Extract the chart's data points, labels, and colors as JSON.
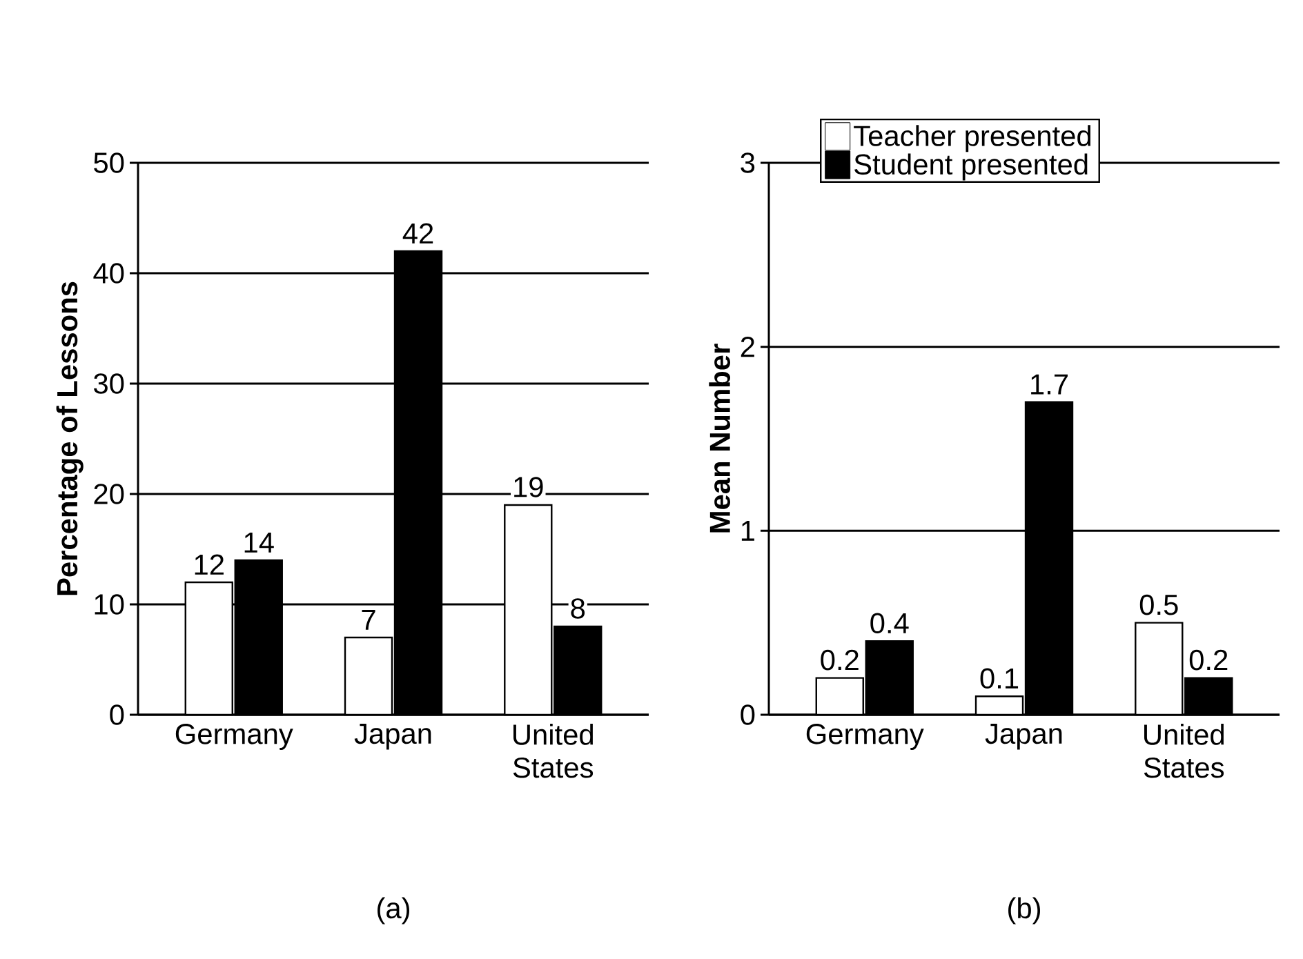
{
  "chart_data": [
    {
      "type": "bar",
      "ylabel": "Percentage of Lessons",
      "categories": [
        "Germany",
        "Japan",
        "United States"
      ],
      "series": [
        {
          "color": "#ffffff",
          "values": [
            12,
            7,
            19
          ]
        },
        {
          "color": "#000000",
          "values": [
            14,
            42,
            8
          ]
        }
      ],
      "ylim": [
        0,
        50
      ],
      "yticks": [
        0,
        10,
        20,
        30,
        40,
        50
      ],
      "grid": "y",
      "data_labels": true,
      "legend": false,
      "annotations": [
        "(a)"
      ]
    },
    {
      "type": "bar",
      "ylabel": "Mean Number",
      "categories": [
        "Germany",
        "Japan",
        "United States"
      ],
      "series": [
        {
          "name": "Teacher presented",
          "color": "#ffffff",
          "values": [
            0.2,
            0.1,
            0.5
          ]
        },
        {
          "name": "Student presented",
          "color": "#000000",
          "values": [
            0.4,
            1.7,
            0.2
          ]
        }
      ],
      "ylim": [
        0,
        3
      ],
      "yticks": [
        0,
        1,
        2,
        3
      ],
      "grid": "y",
      "data_labels": true,
      "legend": "top left",
      "annotations": [
        "(b)"
      ]
    }
  ]
}
